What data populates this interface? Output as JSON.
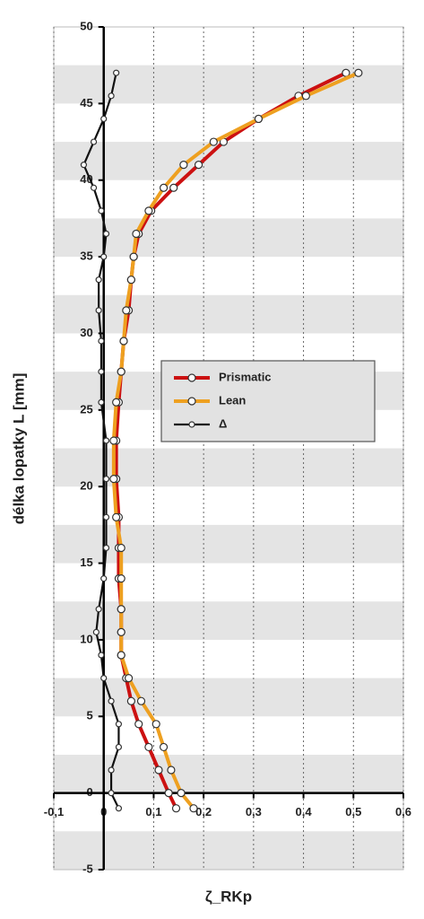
{
  "chart_data": {
    "type": "line",
    "x_label": "ζ_RKp",
    "y_label": "délka lopatky L [mm]",
    "xlim": [
      -0.1,
      0.6
    ],
    "xticks": [
      {
        "value": -0.1,
        "label": "-0,1"
      },
      0,
      {
        "value": 0.1,
        "label": "0,1"
      },
      {
        "value": 0.2,
        "label": "0,2"
      },
      {
        "value": 0.3,
        "label": "0,3"
      },
      {
        "value": 0.4,
        "label": "0,4"
      },
      {
        "value": 0.5,
        "label": "0,5"
      },
      {
        "value": 0.6,
        "label": "0,6"
      }
    ],
    "ylim": [
      -5,
      50
    ],
    "yticks": [
      -5,
      0,
      5,
      10,
      15,
      20,
      25,
      30,
      35,
      40,
      45,
      50
    ],
    "grid": true,
    "legend": "center-right",
    "y": [
      47,
      45.5,
      44,
      42.5,
      41,
      39.5,
      38,
      36.5,
      35,
      33.5,
      31.5,
      29.5,
      27.5,
      25.5,
      23,
      20.5,
      18,
      16,
      14,
      12,
      10.5,
      9,
      7.5,
      6,
      4.5,
      3,
      1.5,
      0,
      -1
    ],
    "series": [
      {
        "name": "Prismatic",
        "color": "#cc1111",
        "values": [
          0.485,
          0.39,
          0.31,
          0.24,
          0.19,
          0.14,
          0.095,
          0.07,
          0.06,
          0.055,
          0.05,
          0.04,
          0.035,
          0.03,
          0.025,
          0.025,
          0.03,
          0.03,
          0.03,
          0.035,
          0.035,
          0.035,
          0.045,
          0.055,
          0.07,
          0.09,
          0.11,
          0.13,
          0.145
        ]
      },
      {
        "name": "Lean",
        "color": "#eea020",
        "values": [
          0.51,
          0.405,
          0.31,
          0.22,
          0.16,
          0.12,
          0.09,
          0.065,
          0.06,
          0.055,
          0.045,
          0.04,
          0.035,
          0.025,
          0.02,
          0.02,
          0.025,
          0.035,
          0.035,
          0.035,
          0.035,
          0.035,
          0.05,
          0.075,
          0.105,
          0.12,
          0.135,
          0.155,
          0.18
        ]
      },
      {
        "name": "Δ",
        "color": "#111111",
        "values": [
          0.025,
          0.015,
          0,
          -0.02,
          -0.04,
          -0.02,
          -0.005,
          0.005,
          0,
          -0.01,
          -0.01,
          -0.005,
          -0.005,
          -0.005,
          0.005,
          0.005,
          0.005,
          0.005,
          0,
          -0.01,
          -0.015,
          -0.005,
          0,
          0.015,
          0.03,
          0.03,
          0.015,
          0.015,
          0.03
        ]
      }
    ]
  }
}
